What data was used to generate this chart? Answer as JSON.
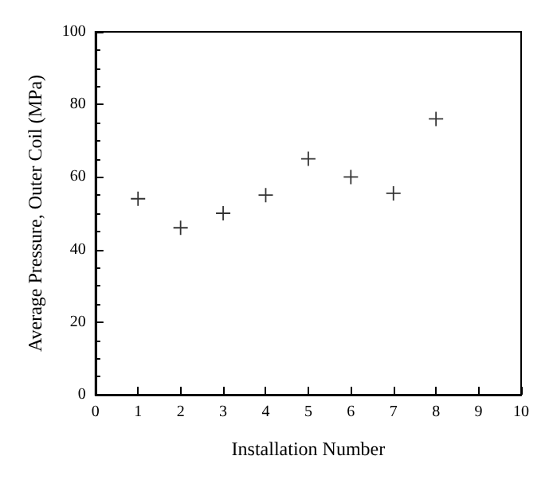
{
  "chart_data": {
    "type": "scatter",
    "xlabel": "Installation Number",
    "ylabel": "Average Pressure, Outer Coil (MPa)",
    "x": [
      1,
      2,
      3,
      4,
      5,
      6,
      7,
      8
    ],
    "values": [
      54,
      46,
      50,
      55,
      65,
      60,
      55.5,
      76
    ],
    "color": "#000000",
    "marker": "cross",
    "xlim": [
      0,
      10
    ],
    "xticks": [
      0,
      1,
      2,
      3,
      4,
      5,
      6,
      7,
      8,
      9,
      10
    ],
    "ylim": [
      0,
      100
    ],
    "yticks": [
      0,
      20,
      40,
      60,
      80,
      100
    ],
    "grid": false
  }
}
